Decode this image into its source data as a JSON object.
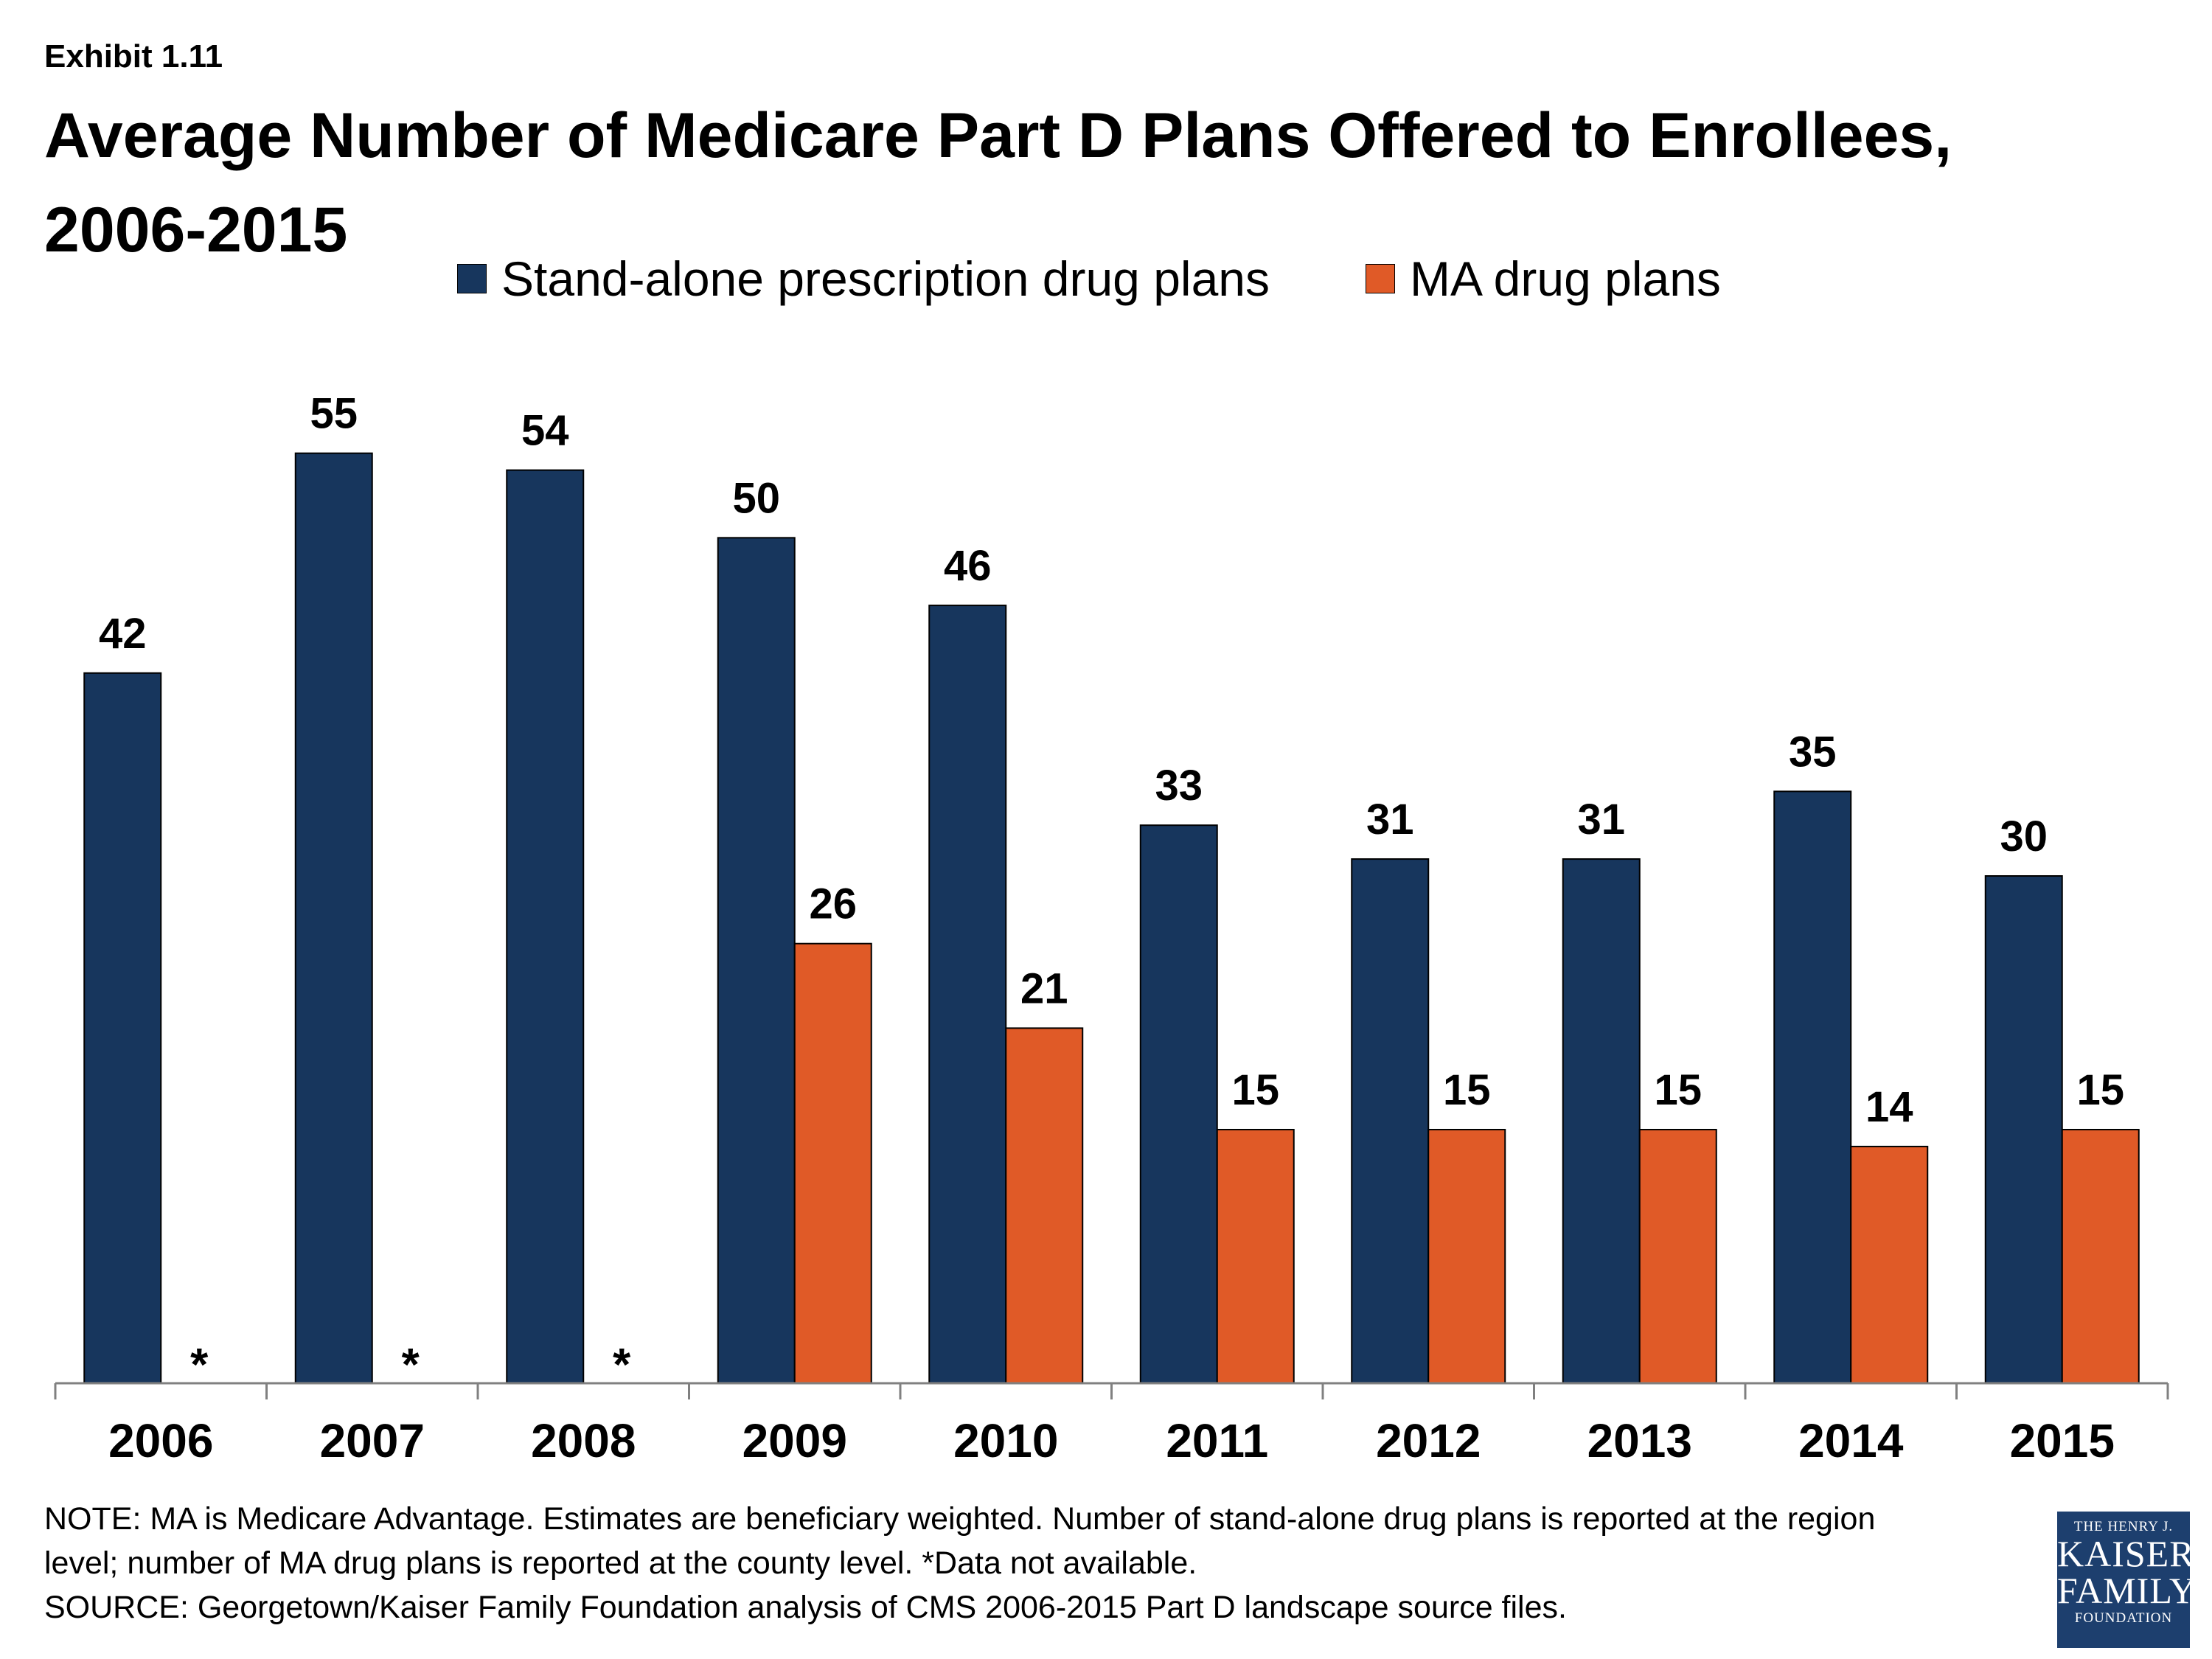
{
  "exhibit": "Exhibit 1.11",
  "title": "Average Number of Medicare Part D Plans Offered to Enrollees, 2006-2015",
  "note_lines": [
    "NOTE: MA is Medicare Advantage. Estimates are beneficiary weighted. Number of stand-alone drug plans is reported at the region",
    "level; number of MA drug plans is reported at the county level. *Data not available.",
    "SOURCE: Georgetown/Kaiser Family Foundation analysis of CMS 2006-2015 Part D landscape source files."
  ],
  "logo": {
    "line1": "THE HENRY J.",
    "line2": "KAISER",
    "line3": "FAMILY",
    "line4": "FOUNDATION"
  },
  "colors": {
    "pdp": "#17365d",
    "ma": "#e05a27"
  },
  "chart_data": {
    "type": "bar",
    "categories": [
      "2006",
      "2007",
      "2008",
      "2009",
      "2010",
      "2011",
      "2012",
      "2013",
      "2014",
      "2015"
    ],
    "series": [
      {
        "name": "Stand-alone prescription drug plans",
        "values": [
          42,
          55,
          54,
          50,
          46,
          33,
          31,
          31,
          35,
          30
        ]
      },
      {
        "name": "MA drug plans",
        "values": [
          null,
          null,
          null,
          26,
          21,
          15,
          15,
          15,
          14,
          15
        ]
      }
    ],
    "missing_label": "*",
    "ylim": [
      0,
      60
    ],
    "legend": "top",
    "grid": false
  }
}
